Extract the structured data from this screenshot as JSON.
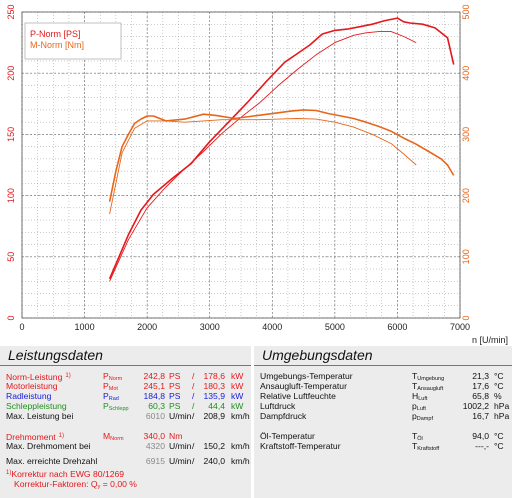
{
  "chart_data": {
    "type": "line",
    "title": "",
    "xlabel": "n [U/min]",
    "xlim": [
      0,
      7000
    ],
    "x_ticks": [
      "0",
      "1000",
      "2000",
      "3000",
      "4000",
      "5000",
      "6000",
      "7000"
    ],
    "y_left": {
      "lim": [
        0,
        250
      ],
      "ticks": [
        "0",
        "50",
        "100",
        "150",
        "200",
        "250"
      ],
      "color": "#e4181c"
    },
    "y_right": {
      "lim": [
        0,
        500
      ],
      "ticks": [
        "0",
        "100",
        "200",
        "300",
        "400",
        "500"
      ],
      "color": "#e8661a"
    },
    "grid": true,
    "legend": {
      "placement": "top-left",
      "entries": [
        "P-Norm [PS]",
        "M-Norm [Nm]"
      ]
    },
    "series": [
      {
        "name": "P-Norm [PS]",
        "color": "#e4181c",
        "axis": "left",
        "width": 1.6,
        "x": [
          1400,
          1500,
          1700,
          1900,
          2100,
          2400,
          2700,
          3000,
          3300,
          3600,
          3900,
          4200,
          4400,
          4600,
          4800,
          5000,
          5200,
          5400,
          5600,
          5800,
          6000,
          6100,
          6200,
          6400,
          6600,
          6800,
          6900
        ],
        "y": [
          32,
          44,
          68,
          88,
          101,
          114,
          126,
          144,
          160,
          176,
          193,
          209,
          216,
          223,
          232,
          235,
          236,
          238,
          240,
          243,
          245,
          242,
          241,
          240,
          237,
          229,
          207
        ]
      },
      {
        "name": "",
        "color": "#e4181c",
        "axis": "left",
        "width": 0.9,
        "x": [
          1400,
          1700,
          2000,
          2300,
          2600,
          2900,
          3200,
          3500,
          3800,
          4100,
          4400,
          4700,
          5000,
          5300,
          5500,
          5700,
          5900,
          6100,
          6300
        ],
        "y": [
          30,
          64,
          90,
          107,
          122,
          136,
          151,
          164,
          176,
          190,
          203,
          215,
          225,
          231,
          233,
          234,
          234,
          230,
          225
        ]
      },
      {
        "name": "M-Norm [Nm]",
        "color": "#e8661a",
        "axis": "right",
        "width": 1.6,
        "x": [
          1400,
          1500,
          1600,
          1700,
          1800,
          1900,
          2000,
          2100,
          2300,
          2600,
          2900,
          3100,
          3400,
          3700,
          4000,
          4300,
          4500,
          4700,
          4900,
          5100,
          5300,
          5500,
          5700,
          5900,
          6100,
          6300,
          6500,
          6700,
          6800,
          6900
        ],
        "y": [
          190,
          240,
          280,
          300,
          318,
          325,
          330,
          330,
          322,
          325,
          333,
          331,
          326,
          330,
          334,
          338,
          340,
          339,
          334,
          330,
          326,
          320,
          313,
          305,
          294,
          284,
          272,
          260,
          250,
          233
        ]
      },
      {
        "name": "",
        "color": "#e8661a",
        "axis": "right",
        "width": 0.9,
        "x": [
          1400,
          1600,
          1800,
          2000,
          2300,
          2600,
          2900,
          3200,
          3500,
          3800,
          4100,
          4400,
          4700,
          5000,
          5300,
          5600,
          5900,
          6100,
          6300
        ],
        "y": [
          170,
          270,
          310,
          322,
          322,
          320,
          322,
          324,
          324,
          324,
          325,
          326,
          325,
          320,
          312,
          300,
          285,
          268,
          250
        ]
      }
    ]
  },
  "leistung": {
    "title": "Leistungsdaten",
    "rows": [
      {
        "label": "Norm-Leistung",
        "note": "1)",
        "sym": "P",
        "sub": "Norm",
        "v1": "242,8",
        "u1": "PS",
        "sep": "/",
        "v2": "178,6",
        "u2": "kW"
      },
      {
        "label": "Motorleistung",
        "sym": "P",
        "sub": "Mot",
        "v1": "245,1",
        "u1": "PS",
        "sep": "/",
        "v2": "180,3",
        "u2": "kW"
      },
      {
        "label": "Radleistung",
        "sym": "P",
        "sub": "Rad",
        "v1": "184,8",
        "u1": "PS",
        "sep": "/",
        "v2": "135,9",
        "u2": "kW"
      },
      {
        "label": "Schleppleistung",
        "sym": "P",
        "sub": "Schlepp",
        "v1": "60,3",
        "u1": "PS",
        "sep": "/",
        "v2": "44,4",
        "u2": "kW"
      },
      {
        "label": "Max. Leistung bei",
        "v1": "6010",
        "u1": "U/min",
        "sep": "/",
        "v2": "208,9",
        "u2": "km/h"
      },
      {
        "label": "Drehmoment",
        "note": "1)",
        "sym": "M",
        "sub": "Norm",
        "v1": "340,0",
        "u1": "Nm"
      },
      {
        "label": "Max. Drehmoment bei",
        "v1": "4320",
        "u1": "U/min",
        "sep": "/",
        "v2": "150,2",
        "u2": "km/h"
      },
      {
        "label": "Max. erreichte Drehzahl",
        "v1": "6915",
        "u1": "U/min",
        "sep": "/",
        "v2": "240,0",
        "u2": "km/h"
      }
    ],
    "footnote1": "Korrektur nach EWG 80/1269",
    "footnote1_mark": "1)",
    "footnote2": "Korrektur-Faktoren:",
    "footnote2_sym": "Q",
    "footnote2_sub": "y",
    "footnote2_eq": "=",
    "footnote2_val": "0,00 %"
  },
  "umgebung": {
    "title": "Umgebungsdaten",
    "rows": [
      {
        "label": "Umgebungs-Temperatur",
        "sym": "T",
        "sub": "Umgebung",
        "value": "21,3",
        "unit": "°C"
      },
      {
        "label": "Ansaugluft-Temperatur",
        "sym": "T",
        "sub": "Ansaugluft",
        "value": "17,6",
        "unit": "°C"
      },
      {
        "label": "Relative Luftfeuchte",
        "sym": "H",
        "sub": "Luft",
        "value": "65,8",
        "unit": "%"
      },
      {
        "label": "Luftdruck",
        "sym": "p",
        "sub": "Luft",
        "value": "1002,2",
        "unit": "hPa"
      },
      {
        "label": "Dampfdruck",
        "sym": "p",
        "sub": "Dampf",
        "value": "16,7",
        "unit": "hPa"
      },
      {
        "label": "Öl-Temperatur",
        "sym": "T",
        "sub": "Öl",
        "value": "94,0",
        "unit": "°C"
      },
      {
        "label": "Kraftstoff-Temperatur",
        "sym": "T",
        "sub": "Kraftstoff",
        "value": "---,-",
        "unit": "°C"
      }
    ]
  }
}
